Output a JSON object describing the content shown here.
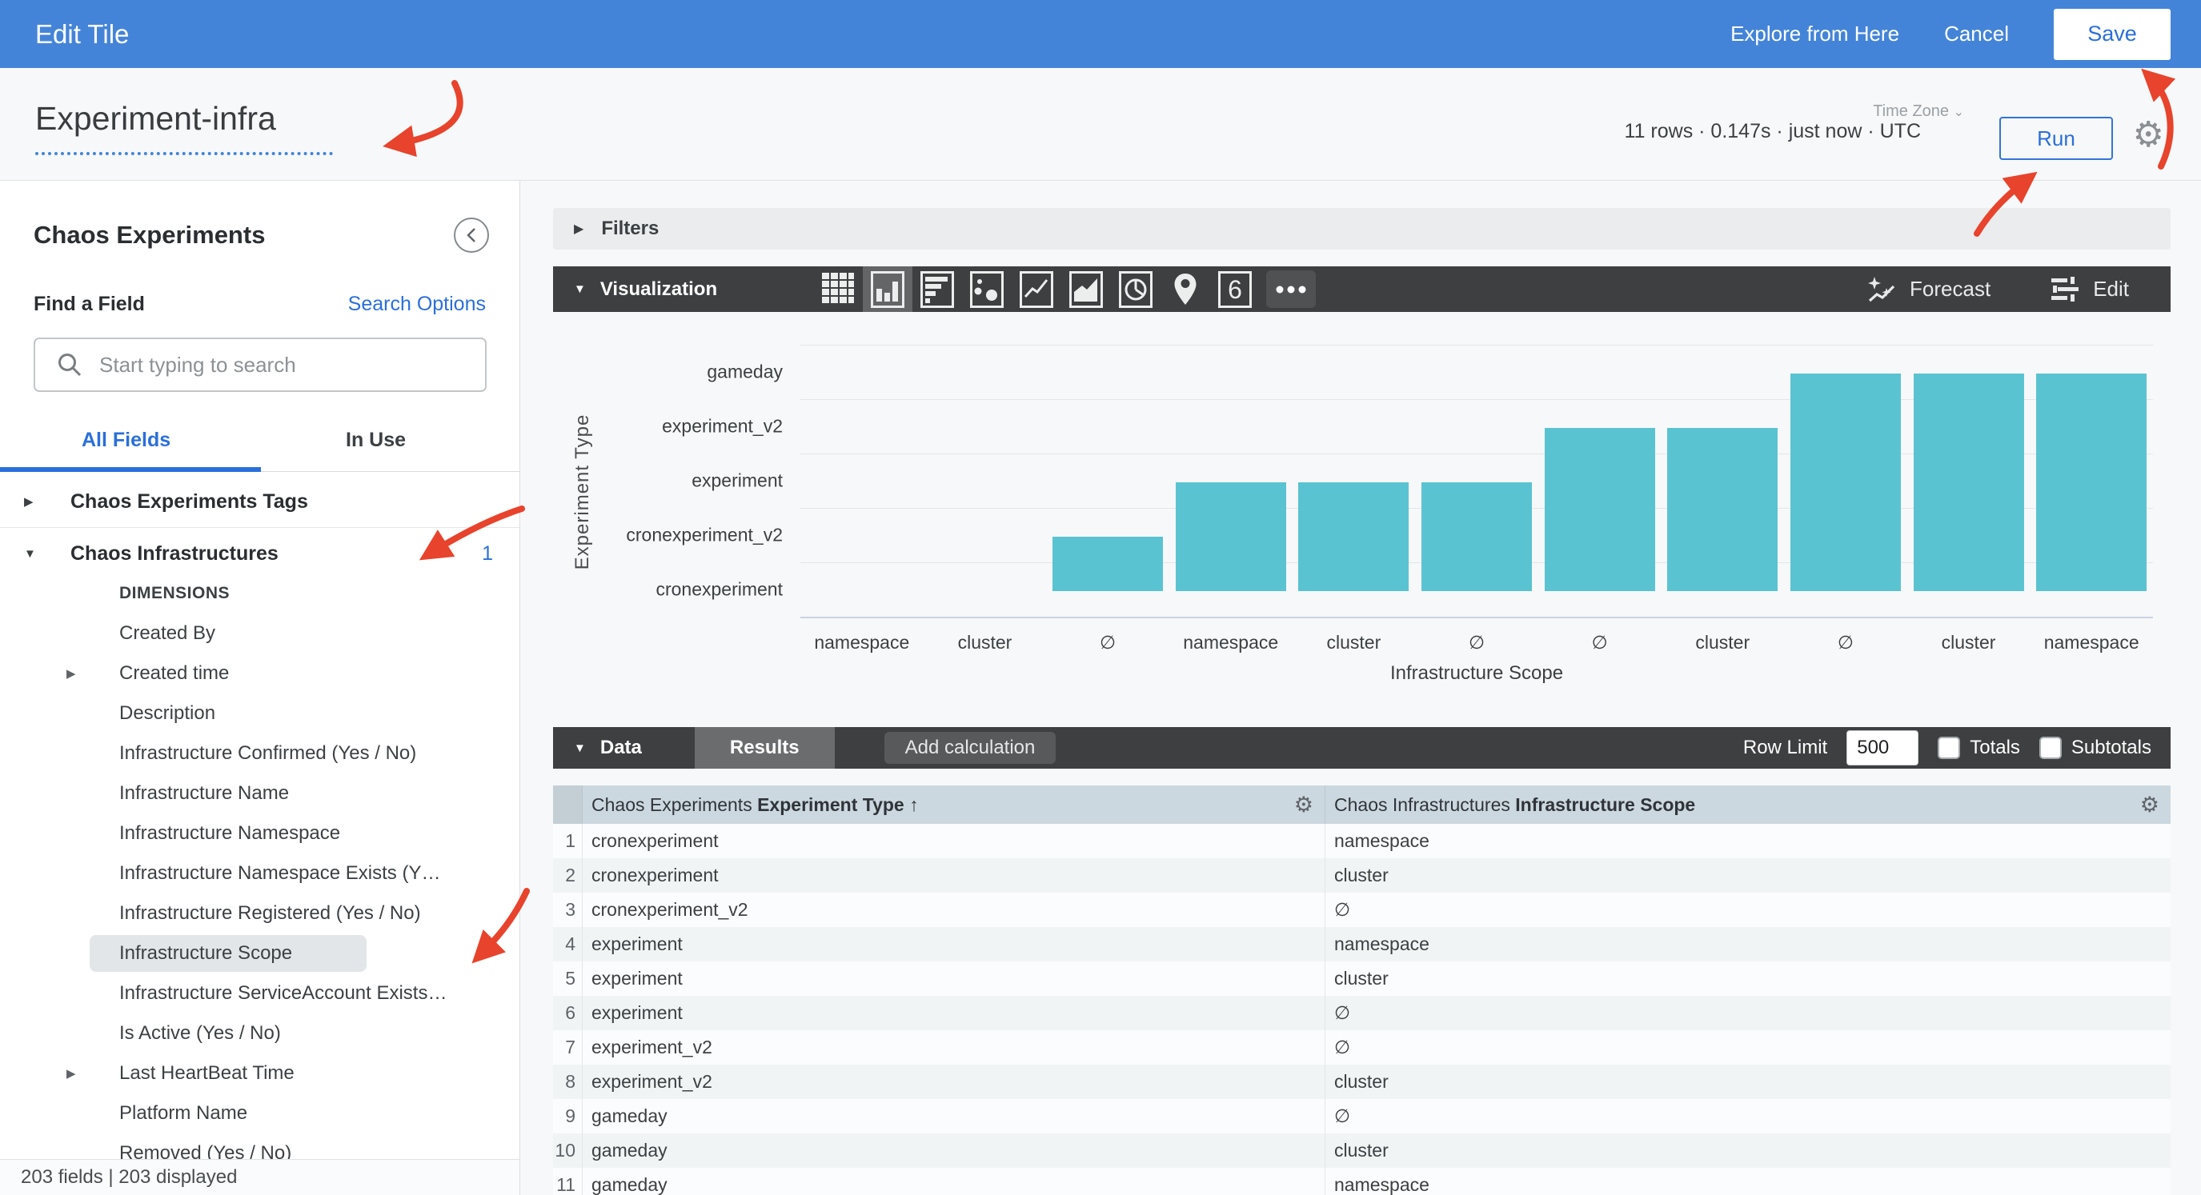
{
  "header": {
    "title": "Edit Tile",
    "explore_link": "Explore from Here",
    "cancel_label": "Cancel",
    "save_label": "Save"
  },
  "query": {
    "tile_name": "Experiment-infra",
    "stats": "11 rows · 0.147s · just now · UTC",
    "timezone_label": "Time Zone",
    "timezone_chevron": "⌄",
    "run_label": "Run"
  },
  "sidebar": {
    "view_title": "Chaos Experiments",
    "find_label": "Find a Field",
    "search_options_label": "Search Options",
    "search_placeholder": "Start typing to search",
    "tab_all": "All Fields",
    "tab_in_use": "In Use",
    "fields": [
      {
        "type": "group",
        "label": "Chaos Experiments Tags",
        "arrow": "collapsed"
      },
      {
        "type": "divider"
      },
      {
        "type": "group",
        "label": "Chaos Infrastructures",
        "arrow": "expanded",
        "badge": "1"
      },
      {
        "type": "section",
        "label": "DIMENSIONS"
      },
      {
        "type": "item",
        "label": "Created By"
      },
      {
        "type": "item",
        "label": "Created time",
        "arrow": "collapsed"
      },
      {
        "type": "item",
        "label": "Description"
      },
      {
        "type": "item",
        "label": "Infrastructure Confirmed (Yes / No)"
      },
      {
        "type": "item",
        "label": "Infrastructure Name"
      },
      {
        "type": "item",
        "label": "Infrastructure Namespace"
      },
      {
        "type": "item",
        "label": "Infrastructure Namespace Exists (Y…"
      },
      {
        "type": "item",
        "label": "Infrastructure Registered (Yes / No)"
      },
      {
        "type": "item",
        "label": "Infrastructure Scope",
        "highlighted": true
      },
      {
        "type": "item",
        "label": "Infrastructure ServiceAccount Exists…"
      },
      {
        "type": "item",
        "label": "Is Active (Yes / No)"
      },
      {
        "type": "item",
        "label": "Last HeartBeat Time",
        "arrow": "collapsed"
      },
      {
        "type": "item",
        "label": "Platform Name"
      },
      {
        "type": "item",
        "label": "Removed (Yes / No)"
      }
    ],
    "footer": "203 fields | 203 displayed"
  },
  "filters": {
    "label": "Filters"
  },
  "viz": {
    "label": "Visualization",
    "forecast_label": "Forecast",
    "edit_label": "Edit",
    "icons": [
      "table",
      "column-chart",
      "bar-chart",
      "scatter",
      "line-chart",
      "area-chart",
      "pie-chart",
      "map",
      "single-value",
      "more"
    ],
    "selected_icon": "column-chart",
    "single_value_glyph": "6"
  },
  "chart_data": {
    "type": "bar",
    "title": "",
    "xlabel": "Infrastructure Scope",
    "ylabel": "Experiment Type",
    "x_categories": [
      "namespace",
      "cluster",
      "∅",
      "namespace",
      "cluster",
      "∅",
      "∅",
      "cluster",
      "∅",
      "cluster",
      "namespace"
    ],
    "y_categories_bottom_to_top": [
      "cronexperiment",
      "cronexperiment_v2",
      "experiment",
      "experiment_v2",
      "gameday"
    ],
    "values_ordinal": [
      0,
      0,
      1,
      2,
      2,
      2,
      3,
      3,
      4,
      4,
      4
    ],
    "points": [
      {
        "experiment_type": "cronexperiment",
        "infrastructure_scope": "namespace"
      },
      {
        "experiment_type": "cronexperiment",
        "infrastructure_scope": "cluster"
      },
      {
        "experiment_type": "cronexperiment_v2",
        "infrastructure_scope": "∅"
      },
      {
        "experiment_type": "experiment",
        "infrastructure_scope": "namespace"
      },
      {
        "experiment_type": "experiment",
        "infrastructure_scope": "cluster"
      },
      {
        "experiment_type": "experiment",
        "infrastructure_scope": "∅"
      },
      {
        "experiment_type": "experiment_v2",
        "infrastructure_scope": "∅"
      },
      {
        "experiment_type": "experiment_v2",
        "infrastructure_scope": "cluster"
      },
      {
        "experiment_type": "gameday",
        "infrastructure_scope": "∅"
      },
      {
        "experiment_type": "gameday",
        "infrastructure_scope": "cluster"
      },
      {
        "experiment_type": "gameday",
        "infrastructure_scope": "namespace"
      }
    ],
    "bar_color": "#5ac3d1",
    "grid": true,
    "legend": "none"
  },
  "data_section": {
    "label": "Data",
    "results_label": "Results",
    "add_calculation_label": "Add calculation",
    "row_limit_label": "Row Limit",
    "row_limit_value": "500",
    "totals_label": "Totals",
    "subtotals_label": "Subtotals"
  },
  "table": {
    "col1_prefix": "Chaos Experiments",
    "col1_field": "Experiment Type",
    "col1_sort": "↑",
    "col2_prefix": "Chaos Infrastructures",
    "col2_field": "Infrastructure Scope",
    "rows": [
      [
        "1",
        "cronexperiment",
        "namespace"
      ],
      [
        "2",
        "cronexperiment",
        "cluster"
      ],
      [
        "3",
        "cronexperiment_v2",
        "∅"
      ],
      [
        "4",
        "experiment",
        "namespace"
      ],
      [
        "5",
        "experiment",
        "cluster"
      ],
      [
        "6",
        "experiment",
        "∅"
      ],
      [
        "7",
        "experiment_v2",
        "∅"
      ],
      [
        "8",
        "experiment_v2",
        "cluster"
      ],
      [
        "9",
        "gameday",
        "∅"
      ],
      [
        "10",
        "gameday",
        "cluster"
      ],
      [
        "11",
        "gameday",
        "namespace"
      ]
    ]
  },
  "colors": {
    "header_blue": "#4484d8",
    "accent_blue": "#2a6fdb",
    "toolbar_dark": "#3e3f40",
    "bar_teal": "#5ac3d1",
    "annotation_red": "#e8432c",
    "table_header_bg": "#ccd8df"
  }
}
